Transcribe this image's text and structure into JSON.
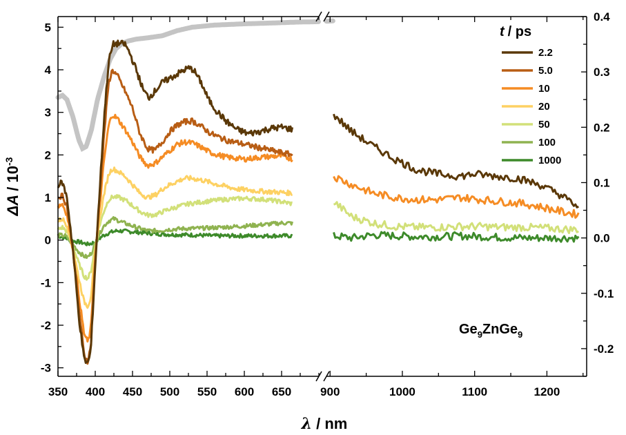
{
  "chart_data": {
    "type": "line",
    "xlabel": {
      "symbol": "λ",
      "unit": "/ nm"
    },
    "ylabel": {
      "symbol": "ΔA",
      "unit": "/ 10",
      "exponent": "-3"
    },
    "x_segments": [
      {
        "range": [
          350,
          700
        ],
        "ticks": [
          350,
          400,
          450,
          500,
          550,
          600,
          650
        ]
      },
      {
        "range": [
          895,
          1255
        ],
        "ticks": [
          900,
          1000,
          1100,
          1200
        ]
      }
    ],
    "ylim": [
      -3.2,
      5.25
    ],
    "yticks": [
      -3,
      -2,
      -1,
      0,
      1,
      2,
      3,
      4,
      5
    ],
    "y2lim": [
      -0.25,
      0.4
    ],
    "y2ticks": [
      "-0.2",
      "-0.1",
      "0.0",
      "0.1",
      "0.2",
      "0.3",
      "0.4"
    ],
    "legend": {
      "title_symbol": "t",
      "title_unit": "/ ps",
      "placement": "top-right"
    },
    "annotation": {
      "base": "Ge",
      "sub1": "9",
      "mid": "ZnGe",
      "sub2": "9"
    },
    "series": [
      {
        "name": "2.2",
        "color": "#5a3808",
        "seg1": [
          [
            350,
            1.3
          ],
          [
            356,
            1.35
          ],
          [
            362,
            1.0
          ],
          [
            370,
            -0.2
          ],
          [
            378,
            -1.8
          ],
          [
            385,
            -2.8
          ],
          [
            390,
            -2.9
          ],
          [
            394,
            -2.6
          ],
          [
            400,
            -0.6
          ],
          [
            405,
            0.9
          ],
          [
            412,
            2.9
          ],
          [
            418,
            4.2
          ],
          [
            424,
            4.6
          ],
          [
            432,
            4.62
          ],
          [
            440,
            4.6
          ],
          [
            446,
            4.4
          ],
          [
            455,
            4.0
          ],
          [
            465,
            3.5
          ],
          [
            472,
            3.35
          ],
          [
            480,
            3.5
          ],
          [
            490,
            3.7
          ],
          [
            500,
            3.8
          ],
          [
            510,
            3.9
          ],
          [
            520,
            4.0
          ],
          [
            526,
            4.04
          ],
          [
            532,
            4.0
          ],
          [
            542,
            3.7
          ],
          [
            552,
            3.3
          ],
          [
            562,
            3.05
          ],
          [
            575,
            2.8
          ],
          [
            590,
            2.6
          ],
          [
            605,
            2.5
          ],
          [
            620,
            2.55
          ],
          [
            635,
            2.62
          ],
          [
            650,
            2.65
          ],
          [
            665,
            2.6
          ]
        ],
        "seg2": [
          [
            905,
            2.95
          ],
          [
            930,
            2.55
          ],
          [
            960,
            2.2
          ],
          [
            990,
            1.9
          ],
          [
            1020,
            1.65
          ],
          [
            1050,
            1.55
          ],
          [
            1080,
            1.5
          ],
          [
            1100,
            1.55
          ],
          [
            1130,
            1.5
          ],
          [
            1160,
            1.45
          ],
          [
            1190,
            1.3
          ],
          [
            1220,
            1.05
          ],
          [
            1245,
            0.75
          ]
        ]
      },
      {
        "name": "5.0",
        "color": "#b85d14",
        "seg1": [
          [
            350,
            1.0
          ],
          [
            356,
            1.05
          ],
          [
            362,
            0.8
          ],
          [
            370,
            -0.2
          ],
          [
            378,
            -1.6
          ],
          [
            385,
            -2.7
          ],
          [
            390,
            -2.85
          ],
          [
            394,
            -2.5
          ],
          [
            400,
            -0.5
          ],
          [
            405,
            0.8
          ],
          [
            412,
            2.5
          ],
          [
            418,
            3.7
          ],
          [
            423,
            4.0
          ],
          [
            430,
            3.85
          ],
          [
            440,
            3.5
          ],
          [
            450,
            3.1
          ],
          [
            460,
            2.5
          ],
          [
            470,
            2.15
          ],
          [
            480,
            2.1
          ],
          [
            490,
            2.3
          ],
          [
            500,
            2.55
          ],
          [
            510,
            2.7
          ],
          [
            520,
            2.78
          ],
          [
            530,
            2.8
          ],
          [
            540,
            2.7
          ],
          [
            555,
            2.5
          ],
          [
            575,
            2.35
          ],
          [
            600,
            2.25
          ],
          [
            625,
            2.15
          ],
          [
            650,
            2.05
          ],
          [
            665,
            2.0
          ]
        ]
      },
      {
        "name": "10",
        "color": "#f58c24",
        "seg1": [
          [
            350,
            0.8
          ],
          [
            356,
            0.85
          ],
          [
            362,
            0.6
          ],
          [
            370,
            -0.2
          ],
          [
            378,
            -1.3
          ],
          [
            385,
            -2.2
          ],
          [
            390,
            -2.4
          ],
          [
            394,
            -2.1
          ],
          [
            400,
            -0.4
          ],
          [
            405,
            0.6
          ],
          [
            412,
            1.9
          ],
          [
            418,
            2.7
          ],
          [
            423,
            2.95
          ],
          [
            430,
            2.85
          ],
          [
            440,
            2.6
          ],
          [
            450,
            2.3
          ],
          [
            460,
            1.95
          ],
          [
            470,
            1.75
          ],
          [
            480,
            1.8
          ],
          [
            490,
            1.95
          ],
          [
            500,
            2.1
          ],
          [
            510,
            2.25
          ],
          [
            520,
            2.3
          ],
          [
            530,
            2.28
          ],
          [
            540,
            2.2
          ],
          [
            555,
            2.05
          ],
          [
            575,
            1.95
          ],
          [
            600,
            1.9
          ],
          [
            625,
            1.95
          ],
          [
            650,
            1.98
          ],
          [
            665,
            1.9
          ]
        ],
        "seg2": [
          [
            905,
            1.5
          ],
          [
            930,
            1.3
          ],
          [
            960,
            1.1
          ],
          [
            990,
            1.0
          ],
          [
            1020,
            0.95
          ],
          [
            1050,
            0.95
          ],
          [
            1080,
            1.0
          ],
          [
            1110,
            0.95
          ],
          [
            1140,
            0.9
          ],
          [
            1170,
            0.85
          ],
          [
            1200,
            0.75
          ],
          [
            1225,
            0.65
          ],
          [
            1245,
            0.6
          ]
        ]
      },
      {
        "name": "20",
        "color": "#fdd163",
        "seg1": [
          [
            350,
            0.45
          ],
          [
            356,
            0.5
          ],
          [
            362,
            0.35
          ],
          [
            370,
            -0.2
          ],
          [
            378,
            -0.9
          ],
          [
            385,
            -1.45
          ],
          [
            390,
            -1.55
          ],
          [
            394,
            -1.35
          ],
          [
            400,
            -0.3
          ],
          [
            405,
            0.4
          ],
          [
            412,
            1.1
          ],
          [
            418,
            1.55
          ],
          [
            423,
            1.68
          ],
          [
            430,
            1.62
          ],
          [
            440,
            1.5
          ],
          [
            450,
            1.3
          ],
          [
            460,
            1.1
          ],
          [
            470,
            1.0
          ],
          [
            480,
            1.05
          ],
          [
            490,
            1.2
          ],
          [
            500,
            1.3
          ],
          [
            510,
            1.38
          ],
          [
            520,
            1.45
          ],
          [
            530,
            1.45
          ],
          [
            545,
            1.4
          ],
          [
            565,
            1.3
          ],
          [
            590,
            1.2
          ],
          [
            620,
            1.15
          ],
          [
            650,
            1.12
          ],
          [
            665,
            1.1
          ]
        ]
      },
      {
        "name": "50",
        "color": "#d2e079",
        "seg1": [
          [
            350,
            0.25
          ],
          [
            356,
            0.3
          ],
          [
            362,
            0.2
          ],
          [
            370,
            -0.15
          ],
          [
            378,
            -0.55
          ],
          [
            385,
            -0.85
          ],
          [
            390,
            -0.9
          ],
          [
            394,
            -0.75
          ],
          [
            400,
            -0.15
          ],
          [
            405,
            0.3
          ],
          [
            412,
            0.7
          ],
          [
            418,
            0.95
          ],
          [
            424,
            1.02
          ],
          [
            432,
            1.0
          ],
          [
            442,
            0.92
          ],
          [
            452,
            0.78
          ],
          [
            462,
            0.65
          ],
          [
            472,
            0.58
          ],
          [
            482,
            0.6
          ],
          [
            495,
            0.7
          ],
          [
            510,
            0.78
          ],
          [
            525,
            0.85
          ],
          [
            545,
            0.9
          ],
          [
            570,
            0.95
          ],
          [
            600,
            0.98
          ],
          [
            630,
            0.95
          ],
          [
            650,
            0.9
          ],
          [
            665,
            0.85
          ]
        ],
        "seg2": [
          [
            905,
            0.9
          ],
          [
            930,
            0.55
          ],
          [
            960,
            0.4
          ],
          [
            990,
            0.32
          ],
          [
            1020,
            0.3
          ],
          [
            1050,
            0.3
          ],
          [
            1080,
            0.32
          ],
          [
            1110,
            0.32
          ],
          [
            1140,
            0.3
          ],
          [
            1170,
            0.3
          ],
          [
            1200,
            0.28
          ],
          [
            1230,
            0.25
          ],
          [
            1245,
            0.25
          ]
        ]
      },
      {
        "name": "100",
        "color": "#8fb350",
        "seg1": [
          [
            350,
            0.12
          ],
          [
            360,
            0.1
          ],
          [
            370,
            -0.1
          ],
          [
            378,
            -0.28
          ],
          [
            385,
            -0.38
          ],
          [
            390,
            -0.4
          ],
          [
            395,
            -0.3
          ],
          [
            402,
            0.0
          ],
          [
            410,
            0.3
          ],
          [
            418,
            0.45
          ],
          [
            425,
            0.5
          ],
          [
            432,
            0.45
          ],
          [
            442,
            0.38
          ],
          [
            455,
            0.3
          ],
          [
            470,
            0.22
          ],
          [
            485,
            0.22
          ],
          [
            500,
            0.25
          ],
          [
            520,
            0.27
          ],
          [
            545,
            0.28
          ],
          [
            570,
            0.3
          ],
          [
            600,
            0.33
          ],
          [
            630,
            0.37
          ],
          [
            650,
            0.4
          ],
          [
            665,
            0.4
          ]
        ]
      },
      {
        "name": "1000",
        "color": "#3d8a2a",
        "seg1": [
          [
            350,
            0.1
          ],
          [
            360,
            0.05
          ],
          [
            370,
            -0.02
          ],
          [
            380,
            -0.05
          ],
          [
            390,
            -0.1
          ],
          [
            400,
            -0.05
          ],
          [
            410,
            0.1
          ],
          [
            420,
            0.18
          ],
          [
            430,
            0.22
          ],
          [
            445,
            0.2
          ],
          [
            460,
            0.18
          ],
          [
            480,
            0.15
          ],
          [
            500,
            0.13
          ],
          [
            530,
            0.12
          ],
          [
            560,
            0.1
          ],
          [
            600,
            0.1
          ],
          [
            640,
            0.1
          ],
          [
            665,
            0.1
          ]
        ],
        "seg2": [
          [
            905,
            0.1
          ],
          [
            930,
            0.05
          ],
          [
            960,
            0.12
          ],
          [
            990,
            0.1
          ],
          [
            1020,
            0.08
          ],
          [
            1050,
            0.08
          ],
          [
            1080,
            0.1
          ],
          [
            1110,
            0.08
          ],
          [
            1140,
            0.06
          ],
          [
            1170,
            0.05
          ],
          [
            1200,
            0.05
          ],
          [
            1230,
            0.05
          ],
          [
            1245,
            0.05
          ]
        ]
      }
    ],
    "absorbance_curve": {
      "color": "#c4c4c4",
      "seg1": [
        [
          350,
          3.35
        ],
        [
          356,
          3.4
        ],
        [
          362,
          3.3
        ],
        [
          370,
          2.9
        ],
        [
          378,
          2.35
        ],
        [
          383,
          2.15
        ],
        [
          388,
          2.2
        ],
        [
          395,
          2.6
        ],
        [
          403,
          3.3
        ],
        [
          412,
          3.85
        ],
        [
          420,
          4.25
        ],
        [
          428,
          4.5
        ],
        [
          436,
          4.62
        ],
        [
          445,
          4.68
        ],
        [
          455,
          4.72
        ],
        [
          470,
          4.75
        ],
        [
          490,
          4.8
        ],
        [
          510,
          4.92
        ],
        [
          530,
          5.0
        ],
        [
          560,
          5.05
        ],
        [
          600,
          5.08
        ],
        [
          640,
          5.1
        ],
        [
          670,
          5.12
        ],
        [
          700,
          5.13
        ]
      ],
      "seg2": [
        [
          895,
          5.14
        ],
        [
          905,
          5.15
        ]
      ]
    }
  }
}
